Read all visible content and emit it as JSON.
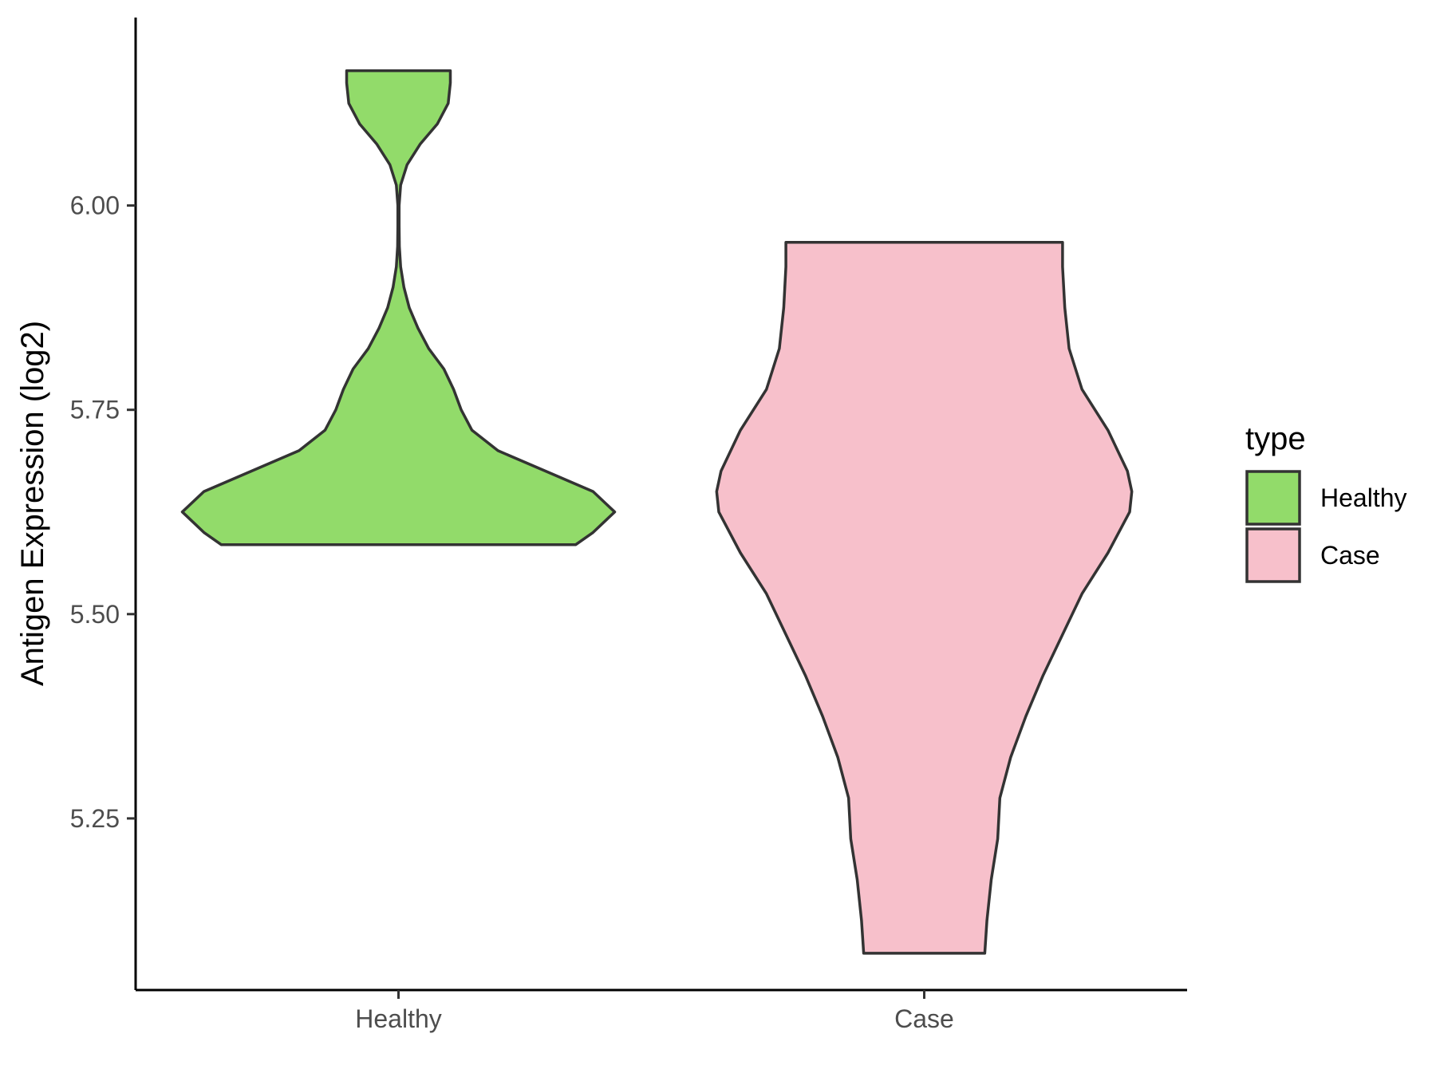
{
  "chart_data": {
    "type": "violin",
    "xlabel": "",
    "ylabel": "Antigen Expression (log2)",
    "ylim": [
      5.04,
      6.23
    ],
    "yticks": [
      5.25,
      5.5,
      5.75,
      6.0
    ],
    "ytick_labels": [
      "5.25",
      "5.50",
      "5.75",
      "6.00"
    ],
    "categories": [
      "Healthy",
      "Case"
    ],
    "grid": false,
    "legend": {
      "title": "type",
      "position": "right",
      "entries": [
        {
          "label": "Healthy",
          "color": "#92DB6A"
        },
        {
          "label": "Case",
          "color": "#F7C0CB"
        }
      ]
    },
    "series": [
      {
        "category": "Healthy",
        "color": "#92DB6A",
        "min": 5.585,
        "max": 6.165,
        "density": [
          [
            5.585,
            0.82
          ],
          [
            5.6,
            0.9
          ],
          [
            5.625,
            1.0
          ],
          [
            5.65,
            0.9
          ],
          [
            5.675,
            0.68
          ],
          [
            5.7,
            0.46
          ],
          [
            5.725,
            0.34
          ],
          [
            5.75,
            0.29
          ],
          [
            5.775,
            0.255
          ],
          [
            5.8,
            0.21
          ],
          [
            5.825,
            0.14
          ],
          [
            5.85,
            0.09
          ],
          [
            5.875,
            0.05
          ],
          [
            5.9,
            0.025
          ],
          [
            5.925,
            0.01
          ],
          [
            5.95,
            0.004
          ],
          [
            5.975,
            0.003
          ],
          [
            6.0,
            0.003
          ],
          [
            6.025,
            0.01
          ],
          [
            6.05,
            0.04
          ],
          [
            6.075,
            0.1
          ],
          [
            6.1,
            0.18
          ],
          [
            6.125,
            0.23
          ],
          [
            6.15,
            0.24
          ],
          [
            6.165,
            0.24
          ]
        ]
      },
      {
        "category": "Case",
        "color": "#F7C0CB",
        "min": 5.085,
        "max": 5.955,
        "density": [
          [
            5.085,
            0.28
          ],
          [
            5.125,
            0.29
          ],
          [
            5.175,
            0.31
          ],
          [
            5.225,
            0.34
          ],
          [
            5.275,
            0.35
          ],
          [
            5.325,
            0.4
          ],
          [
            5.375,
            0.47
          ],
          [
            5.425,
            0.55
          ],
          [
            5.475,
            0.64
          ],
          [
            5.525,
            0.73
          ],
          [
            5.575,
            0.85
          ],
          [
            5.625,
            0.95
          ],
          [
            5.65,
            0.96
          ],
          [
            5.675,
            0.94
          ],
          [
            5.725,
            0.85
          ],
          [
            5.775,
            0.73
          ],
          [
            5.825,
            0.67
          ],
          [
            5.875,
            0.65
          ],
          [
            5.925,
            0.64
          ],
          [
            5.955,
            0.64
          ]
        ]
      }
    ]
  }
}
